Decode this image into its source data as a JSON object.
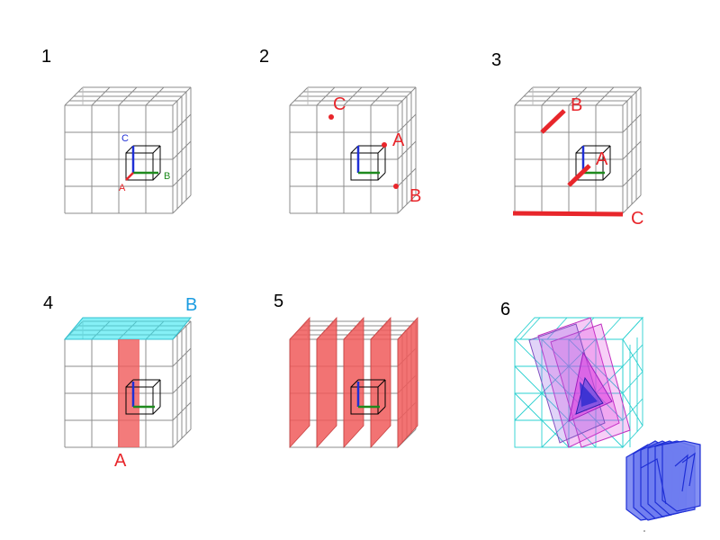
{
  "panels": [
    {
      "number": "1",
      "axis_labels": {
        "a": "A",
        "b": "B",
        "c": "C"
      }
    },
    {
      "number": "2",
      "labels": [
        "C",
        "A",
        "B"
      ]
    },
    {
      "number": "3",
      "labels": [
        "B",
        "A",
        "C"
      ]
    },
    {
      "number": "4",
      "labels": [
        "B",
        "A"
      ]
    },
    {
      "number": "5"
    },
    {
      "number": "6"
    }
  ],
  "colors": {
    "grid": "#8c8c8c",
    "highlight_red": "#e8262b",
    "plane_red": "#f05a5a",
    "plane_cyan": "#33e6f0",
    "label_blue": "#1a9be0",
    "axis_a": "#e8262b",
    "axis_b": "#1e8a1e",
    "axis_c": "#1f2fd6",
    "mesh_cyan": "#2ad0d0",
    "mesh_magenta": "#e040e0",
    "stack_blue": "#6f7df0"
  }
}
